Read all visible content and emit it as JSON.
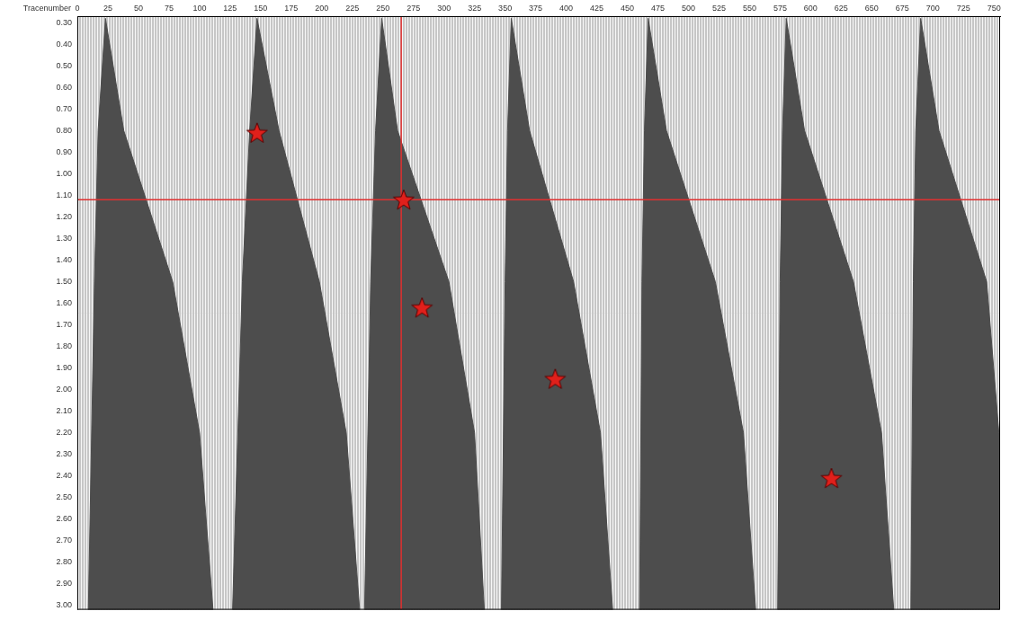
{
  "chart_data": {
    "type": "scatter",
    "x_label": "Tracenumber",
    "xlim": [
      0,
      755
    ],
    "xticks": [
      0,
      25,
      50,
      75,
      100,
      125,
      150,
      175,
      200,
      225,
      250,
      275,
      300,
      325,
      350,
      375,
      400,
      425,
      450,
      475,
      500,
      525,
      550,
      575,
      600,
      625,
      650,
      675,
      700,
      725,
      750
    ],
    "ylim": [
      0.27,
      3.02
    ],
    "yticks": [
      {
        "value": 0.3,
        "label": "0.30"
      },
      {
        "value": 0.4,
        "label": "0.40"
      },
      {
        "value": 0.5,
        "label": "0.50"
      },
      {
        "value": 0.6,
        "label": "0.60"
      },
      {
        "value": 0.7,
        "label": "0.70"
      },
      {
        "value": 0.8,
        "label": "0.80"
      },
      {
        "value": 0.9,
        "label": "0.90"
      },
      {
        "value": 1.0,
        "label": "1.00"
      },
      {
        "value": 1.1,
        "label": "1.10"
      },
      {
        "value": 1.2,
        "label": "1.20"
      },
      {
        "value": 1.3,
        "label": "1.30"
      },
      {
        "value": 1.4,
        "label": "1.40"
      },
      {
        "value": 1.5,
        "label": "1.50"
      },
      {
        "value": 1.6,
        "label": "1.60"
      },
      {
        "value": 1.7,
        "label": "1.70"
      },
      {
        "value": 1.8,
        "label": "1.80"
      },
      {
        "value": 1.9,
        "label": "1.90"
      },
      {
        "value": 2.0,
        "label": "2.00"
      },
      {
        "value": 2.1,
        "label": "2.10"
      },
      {
        "value": 2.2,
        "label": "2.20"
      },
      {
        "value": 2.3,
        "label": "2.30"
      },
      {
        "value": 2.4,
        "label": "2.40"
      },
      {
        "value": 2.5,
        "label": "2.50"
      },
      {
        "value": 2.6,
        "label": "2.60"
      },
      {
        "value": 2.7,
        "label": "2.70"
      },
      {
        "value": 2.8,
        "label": "2.80"
      },
      {
        "value": 2.9,
        "label": "2.90"
      },
      {
        "value": 3.0,
        "label": "3.00"
      }
    ],
    "grid": false,
    "legend": false,
    "gathers": {
      "color": "#4d4d4d",
      "shapes": [
        {
          "x": [
            23,
            38,
            78,
            100,
            111,
            9,
            14,
            17,
            23
          ],
          "y": [
            0.28,
            0.8,
            1.5,
            2.2,
            3.02,
            3.02,
            1.5,
            0.8,
            0.28
          ]
        },
        {
          "x": [
            147,
            165,
            198,
            220,
            231,
            127,
            135,
            141,
            147
          ],
          "y": [
            0.28,
            0.8,
            1.5,
            2.2,
            3.02,
            3.02,
            1.5,
            0.8,
            0.28
          ]
        },
        {
          "x": [
            249,
            262,
            304,
            325,
            333,
            235,
            240,
            244,
            249
          ],
          "y": [
            0.28,
            0.8,
            1.5,
            2.2,
            3.02,
            3.02,
            1.5,
            0.8,
            0.28
          ]
        },
        {
          "x": [
            355,
            370,
            406,
            428,
            438,
            347,
            350,
            352,
            355
          ],
          "y": [
            0.28,
            0.8,
            1.5,
            2.2,
            3.02,
            3.02,
            1.5,
            0.8,
            0.28
          ]
        },
        {
          "x": [
            467,
            482,
            522,
            545,
            555,
            460,
            462,
            464,
            467
          ],
          "y": [
            0.28,
            0.8,
            1.5,
            2.2,
            3.02,
            3.02,
            1.5,
            0.8,
            0.28
          ]
        },
        {
          "x": [
            580,
            595,
            635,
            658,
            668,
            573,
            575,
            577,
            580
          ],
          "y": [
            0.28,
            0.8,
            1.5,
            2.2,
            3.02,
            3.02,
            1.5,
            0.8,
            0.28
          ]
        },
        {
          "x": [
            690,
            705,
            744,
            754,
            754,
            682,
            684,
            686,
            690
          ],
          "y": [
            0.28,
            0.8,
            1.5,
            2.2,
            3.02,
            3.02,
            1.5,
            0.8,
            0.28
          ]
        }
      ]
    },
    "markers": {
      "x": [
        147,
        267,
        282,
        391,
        617
      ],
      "y": [
        0.81,
        1.12,
        1.62,
        1.95,
        2.41
      ],
      "color": "#e0201b",
      "marker": "star"
    },
    "crosshair": {
      "x": 265,
      "y": 1.12,
      "color": "#e03030"
    }
  }
}
